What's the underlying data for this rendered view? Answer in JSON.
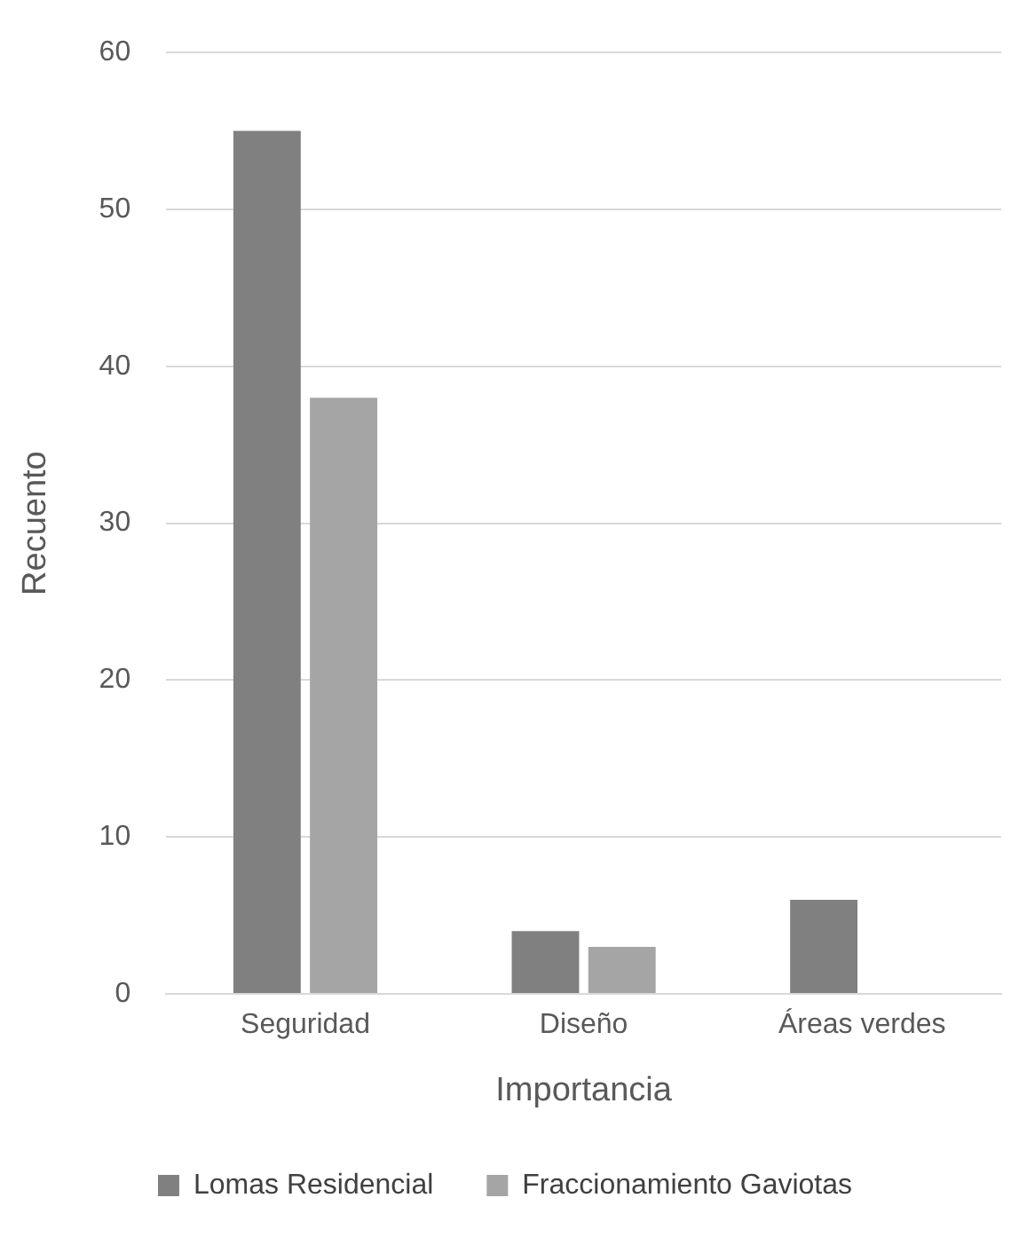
{
  "chart_data": {
    "type": "bar",
    "xlabel": "Importancia",
    "ylabel": "Recuento",
    "categories": [
      "Seguridad",
      "Diseño",
      "Áreas verdes"
    ],
    "series": [
      {
        "name": "Lomas Residencial",
        "color": "#808080",
        "values": [
          55,
          4,
          6
        ]
      },
      {
        "name": "Fraccionamiento Gaviotas",
        "color": "#a5a5a5",
        "values": [
          38,
          3,
          null
        ]
      }
    ],
    "ylim": [
      0,
      60
    ],
    "yticks": [
      0,
      10,
      20,
      30,
      40,
      50,
      60
    ],
    "grid": "y",
    "legend": "bottom"
  }
}
